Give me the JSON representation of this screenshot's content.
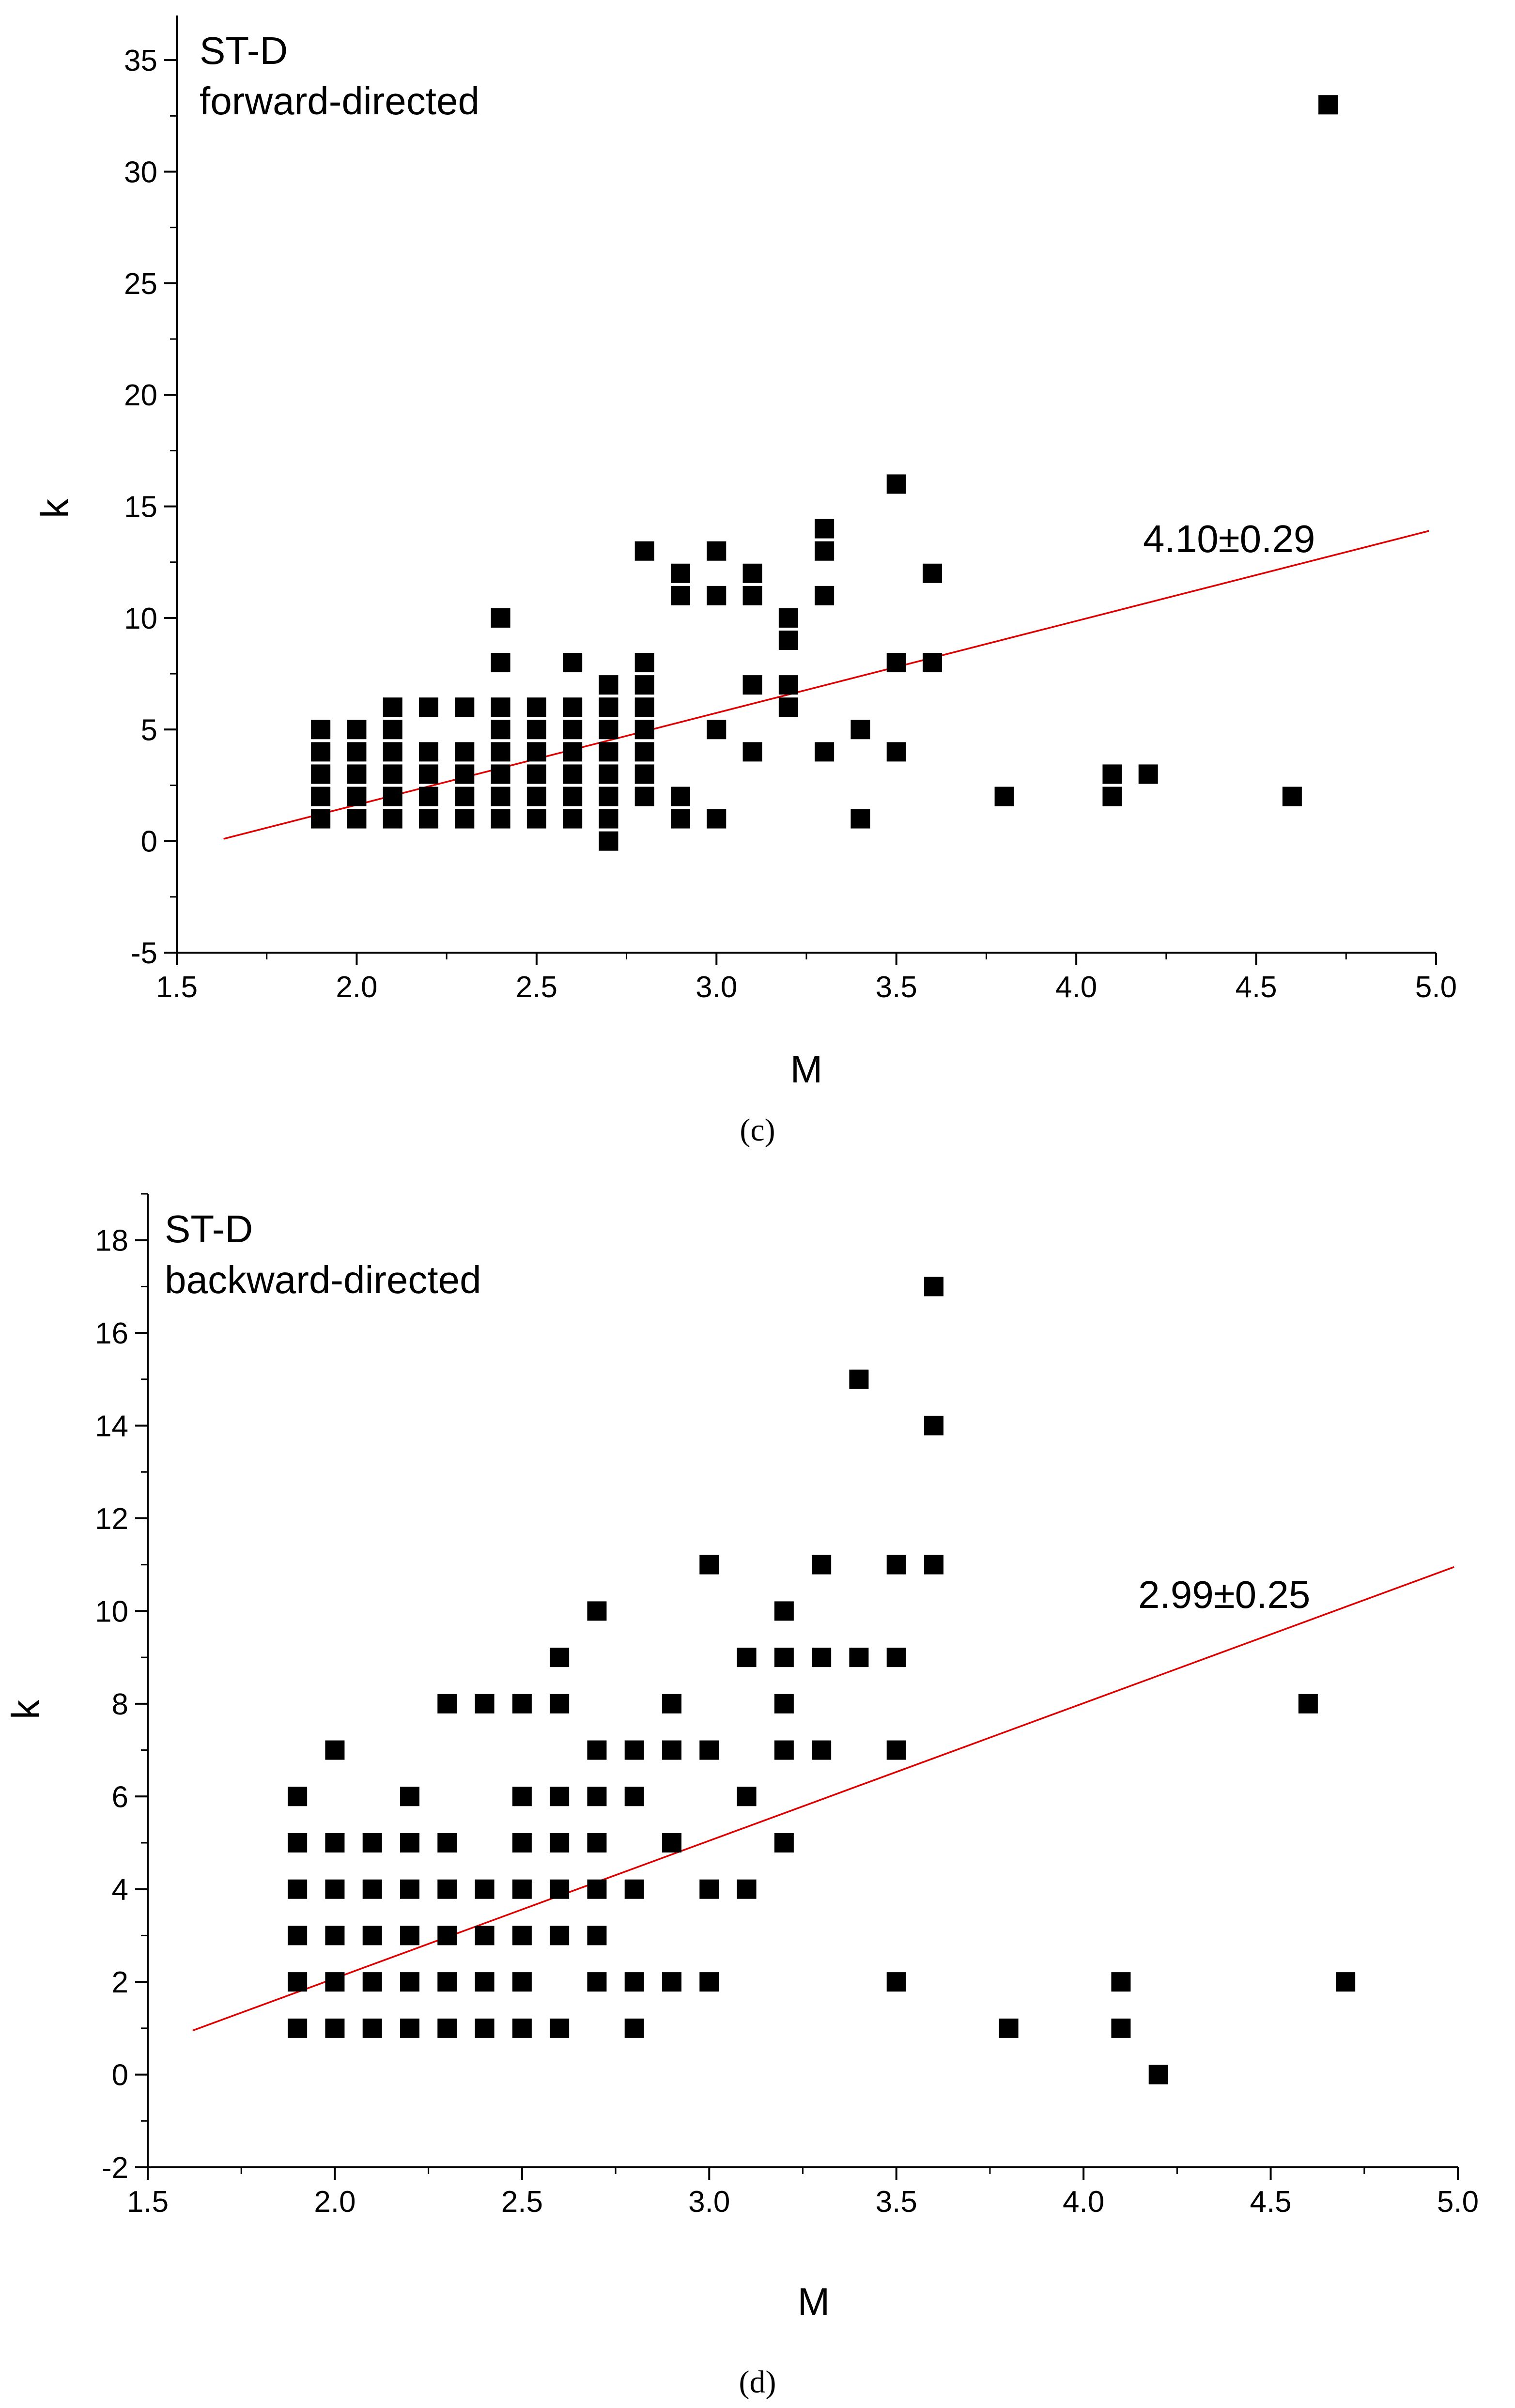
{
  "chart_data": [
    {
      "type": "scatter",
      "panel": "c",
      "panel_label": "(c)",
      "title_lines": [
        "ST-D",
        "forward-directed"
      ],
      "xlabel": "M",
      "ylabel": "k",
      "xlim": [
        1.5,
        5.0
      ],
      "ylim": [
        -5,
        37
      ],
      "x_ticks": [
        1.5,
        2.0,
        2.5,
        3.0,
        3.5,
        4.0,
        4.5,
        5.0
      ],
      "x_tick_labels": [
        "1.5",
        "2.0",
        "2.5",
        "3.0",
        "3.5",
        "4.0",
        "4.5",
        "5.0"
      ],
      "y_ticks": [
        -5,
        0,
        5,
        10,
        15,
        20,
        25,
        30,
        35
      ],
      "y_tick_labels": [
        "-5",
        "0",
        "5",
        "10",
        "15",
        "20",
        "25",
        "30",
        "35"
      ],
      "fit_annotation": "4.10±0.29",
      "fit_line": {
        "x": [
          1.63,
          4.98
        ],
        "y": [
          0.1,
          13.9
        ],
        "color": "#e00000"
      },
      "points": [
        [
          1.9,
          1
        ],
        [
          1.9,
          2
        ],
        [
          1.9,
          3
        ],
        [
          1.9,
          4
        ],
        [
          1.9,
          5
        ],
        [
          2.0,
          1
        ],
        [
          2.0,
          2
        ],
        [
          2.0,
          3
        ],
        [
          2.0,
          4
        ],
        [
          2.0,
          5
        ],
        [
          2.1,
          1
        ],
        [
          2.1,
          2
        ],
        [
          2.1,
          3
        ],
        [
          2.1,
          4
        ],
        [
          2.1,
          5
        ],
        [
          2.1,
          6
        ],
        [
          2.2,
          1
        ],
        [
          2.2,
          2
        ],
        [
          2.2,
          3
        ],
        [
          2.2,
          4
        ],
        [
          2.2,
          6
        ],
        [
          2.3,
          1
        ],
        [
          2.3,
          2
        ],
        [
          2.3,
          3
        ],
        [
          2.3,
          4
        ],
        [
          2.3,
          6
        ],
        [
          2.4,
          1
        ],
        [
          2.4,
          2
        ],
        [
          2.4,
          3
        ],
        [
          2.4,
          4
        ],
        [
          2.4,
          5
        ],
        [
          2.4,
          6
        ],
        [
          2.4,
          8
        ],
        [
          2.4,
          10
        ],
        [
          2.5,
          1
        ],
        [
          2.5,
          2
        ],
        [
          2.5,
          3
        ],
        [
          2.5,
          4
        ],
        [
          2.5,
          5
        ],
        [
          2.5,
          6
        ],
        [
          2.6,
          1
        ],
        [
          2.6,
          2
        ],
        [
          2.6,
          3
        ],
        [
          2.6,
          4
        ],
        [
          2.6,
          5
        ],
        [
          2.6,
          6
        ],
        [
          2.6,
          8
        ],
        [
          2.7,
          0
        ],
        [
          2.7,
          1
        ],
        [
          2.7,
          2
        ],
        [
          2.7,
          3
        ],
        [
          2.7,
          4
        ],
        [
          2.7,
          5
        ],
        [
          2.7,
          6
        ],
        [
          2.7,
          7
        ],
        [
          2.8,
          2
        ],
        [
          2.8,
          3
        ],
        [
          2.8,
          4
        ],
        [
          2.8,
          5
        ],
        [
          2.8,
          6
        ],
        [
          2.8,
          7
        ],
        [
          2.8,
          8
        ],
        [
          2.8,
          13
        ],
        [
          2.9,
          1
        ],
        [
          2.9,
          2
        ],
        [
          2.9,
          11
        ],
        [
          2.9,
          12
        ],
        [
          3.0,
          1
        ],
        [
          3.0,
          5
        ],
        [
          3.0,
          11
        ],
        [
          3.0,
          13
        ],
        [
          3.1,
          4
        ],
        [
          3.1,
          7
        ],
        [
          3.1,
          11
        ],
        [
          3.1,
          12
        ],
        [
          3.2,
          6
        ],
        [
          3.2,
          7
        ],
        [
          3.2,
          9
        ],
        [
          3.2,
          10
        ],
        [
          3.3,
          4
        ],
        [
          3.3,
          11
        ],
        [
          3.3,
          13
        ],
        [
          3.3,
          14
        ],
        [
          3.4,
          1
        ],
        [
          3.4,
          5
        ],
        [
          3.5,
          4
        ],
        [
          3.5,
          8
        ],
        [
          3.5,
          16
        ],
        [
          3.6,
          8
        ],
        [
          3.6,
          12
        ],
        [
          3.8,
          2
        ],
        [
          4.1,
          2
        ],
        [
          4.1,
          3
        ],
        [
          4.2,
          3
        ],
        [
          4.6,
          2
        ],
        [
          4.7,
          33
        ]
      ]
    },
    {
      "type": "scatter",
      "panel": "d",
      "panel_label": "(d)",
      "title_lines": [
        "ST-D",
        "backward-directed"
      ],
      "xlabel": "M",
      "ylabel": "k",
      "xlim": [
        1.5,
        5.0
      ],
      "ylim": [
        -2,
        19
      ],
      "x_ticks": [
        1.5,
        2.0,
        2.5,
        3.0,
        3.5,
        4.0,
        4.5,
        5.0
      ],
      "x_tick_labels": [
        "1.5",
        "2.0",
        "2.5",
        "3.0",
        "3.5",
        "4.0",
        "4.5",
        "5.0"
      ],
      "y_ticks": [
        -2,
        0,
        2,
        4,
        6,
        8,
        10,
        12,
        14,
        16,
        18
      ],
      "y_tick_labels": [
        "-2",
        "0",
        "2",
        "4",
        "6",
        "8",
        "10",
        "12",
        "14",
        "16",
        "18"
      ],
      "fit_annotation": "2.99±0.25",
      "fit_line": {
        "x": [
          1.62,
          4.99
        ],
        "y": [
          0.95,
          10.95
        ],
        "color": "#e00000"
      },
      "points": [
        [
          1.9,
          1
        ],
        [
          1.9,
          2
        ],
        [
          1.9,
          3
        ],
        [
          1.9,
          4
        ],
        [
          1.9,
          5
        ],
        [
          1.9,
          6
        ],
        [
          2.0,
          1
        ],
        [
          2.0,
          2
        ],
        [
          2.0,
          3
        ],
        [
          2.0,
          4
        ],
        [
          2.0,
          5
        ],
        [
          2.0,
          7
        ],
        [
          2.1,
          1
        ],
        [
          2.1,
          2
        ],
        [
          2.1,
          3
        ],
        [
          2.1,
          4
        ],
        [
          2.1,
          5
        ],
        [
          2.2,
          1
        ],
        [
          2.2,
          2
        ],
        [
          2.2,
          3
        ],
        [
          2.2,
          4
        ],
        [
          2.2,
          5
        ],
        [
          2.2,
          6
        ],
        [
          2.3,
          1
        ],
        [
          2.3,
          2
        ],
        [
          2.3,
          3
        ],
        [
          2.3,
          4
        ],
        [
          2.3,
          5
        ],
        [
          2.3,
          8
        ],
        [
          2.4,
          1
        ],
        [
          2.4,
          2
        ],
        [
          2.4,
          3
        ],
        [
          2.4,
          4
        ],
        [
          2.4,
          8
        ],
        [
          2.5,
          1
        ],
        [
          2.5,
          2
        ],
        [
          2.5,
          3
        ],
        [
          2.5,
          4
        ],
        [
          2.5,
          5
        ],
        [
          2.5,
          6
        ],
        [
          2.5,
          8
        ],
        [
          2.6,
          1
        ],
        [
          2.6,
          3
        ],
        [
          2.6,
          4
        ],
        [
          2.6,
          5
        ],
        [
          2.6,
          6
        ],
        [
          2.6,
          8
        ],
        [
          2.6,
          9
        ],
        [
          2.7,
          2
        ],
        [
          2.7,
          3
        ],
        [
          2.7,
          4
        ],
        [
          2.7,
          5
        ],
        [
          2.7,
          6
        ],
        [
          2.7,
          7
        ],
        [
          2.7,
          10
        ],
        [
          2.8,
          1
        ],
        [
          2.8,
          2
        ],
        [
          2.8,
          4
        ],
        [
          2.8,
          6
        ],
        [
          2.8,
          7
        ],
        [
          2.9,
          2
        ],
        [
          2.9,
          5
        ],
        [
          2.9,
          7
        ],
        [
          2.9,
          8
        ],
        [
          3.0,
          2
        ],
        [
          3.0,
          4
        ],
        [
          3.0,
          7
        ],
        [
          3.0,
          11
        ],
        [
          3.1,
          4
        ],
        [
          3.1,
          6
        ],
        [
          3.1,
          9
        ],
        [
          3.2,
          5
        ],
        [
          3.2,
          7
        ],
        [
          3.2,
          8
        ],
        [
          3.2,
          9
        ],
        [
          3.2,
          10
        ],
        [
          3.3,
          7
        ],
        [
          3.3,
          9
        ],
        [
          3.3,
          11
        ],
        [
          3.4,
          9
        ],
        [
          3.4,
          15
        ],
        [
          3.5,
          2
        ],
        [
          3.5,
          7
        ],
        [
          3.5,
          9
        ],
        [
          3.5,
          11
        ],
        [
          3.6,
          11
        ],
        [
          3.6,
          14
        ],
        [
          3.6,
          17
        ],
        [
          3.8,
          1
        ],
        [
          4.1,
          1
        ],
        [
          4.1,
          2
        ],
        [
          4.2,
          0
        ],
        [
          4.6,
          8
        ],
        [
          4.7,
          2
        ]
      ]
    }
  ]
}
